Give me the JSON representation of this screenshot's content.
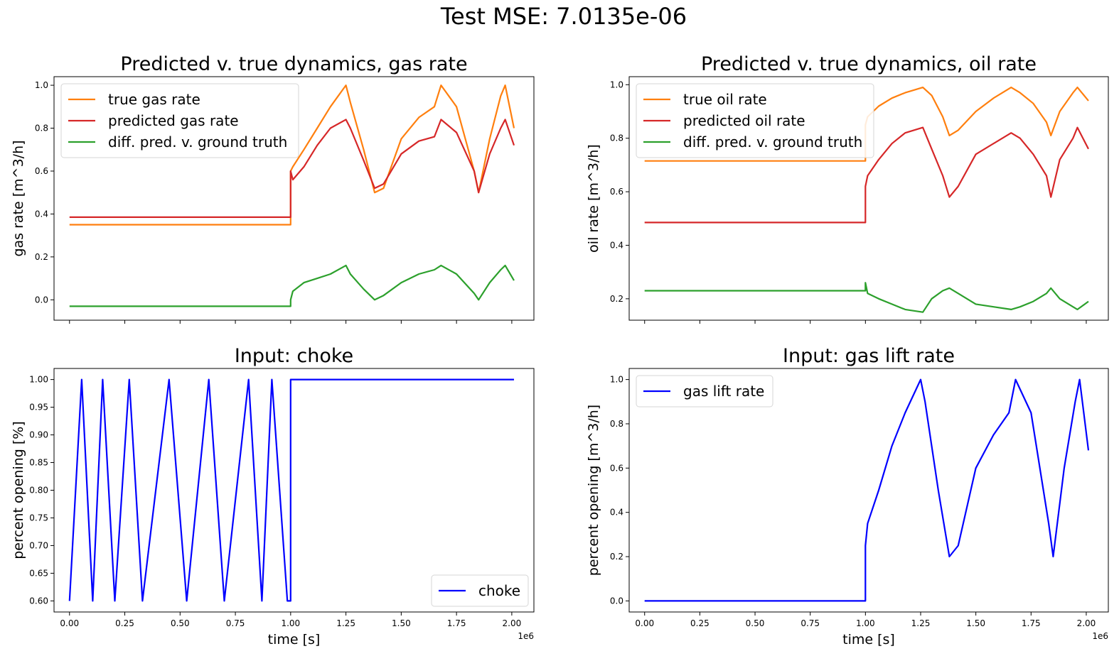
{
  "figure": {
    "suptitle": "Test MSE: 7.0135e-06"
  },
  "colors": {
    "true": "#ff7f0e",
    "predicted": "#d62728",
    "diff": "#2ca02c",
    "input": "#0000ff"
  },
  "chart_data": [
    {
      "id": "gas",
      "type": "line",
      "title": "Predicted v. true dynamics, gas rate",
      "xlabel": "",
      "ylabel": "gas rate [m^3/h]",
      "xlim": [
        -70000,
        2100000
      ],
      "ylim": [
        -0.095,
        1.04
      ],
      "xticks": [
        0,
        250000,
        500000,
        750000,
        1000000,
        1250000,
        1500000,
        1750000,
        2000000
      ],
      "xtick_labels": [],
      "yticks": [
        0.0,
        0.2,
        0.4,
        0.6,
        0.8,
        1.0
      ],
      "ytick_labels": [
        "0.0",
        "0.2",
        "0.4",
        "0.6",
        "0.8",
        "1.0"
      ],
      "offset_text": "",
      "legend": {
        "loc": "upper-left",
        "entries": [
          "true gas rate",
          "predicted gas rate",
          "diff. pred. v. ground truth"
        ]
      },
      "series": [
        {
          "name": "true gas rate",
          "color_key": "true",
          "x": [
            0,
            1000000,
            1000000,
            1010000,
            1060000,
            1120000,
            1180000,
            1250000,
            1270000,
            1330000,
            1380000,
            1420000,
            1500000,
            1580000,
            1650000,
            1680000,
            1750000,
            1830000,
            1850000,
            1900000,
            1950000,
            1970000,
            2010000
          ],
          "y": [
            0.35,
            0.35,
            0.6,
            0.62,
            0.7,
            0.8,
            0.9,
            1.0,
            0.92,
            0.7,
            0.5,
            0.52,
            0.75,
            0.85,
            0.9,
            1.0,
            0.9,
            0.6,
            0.5,
            0.75,
            0.95,
            1.0,
            0.8
          ]
        },
        {
          "name": "predicted gas rate",
          "color_key": "predicted",
          "x": [
            0,
            1000000,
            1000000,
            1010000,
            1060000,
            1120000,
            1180000,
            1250000,
            1270000,
            1330000,
            1380000,
            1420000,
            1500000,
            1580000,
            1650000,
            1680000,
            1750000,
            1830000,
            1850000,
            1900000,
            1950000,
            1970000,
            2010000
          ],
          "y": [
            0.385,
            0.385,
            0.6,
            0.56,
            0.62,
            0.72,
            0.8,
            0.84,
            0.8,
            0.65,
            0.52,
            0.54,
            0.68,
            0.74,
            0.76,
            0.84,
            0.78,
            0.6,
            0.5,
            0.68,
            0.8,
            0.84,
            0.72
          ]
        },
        {
          "name": "diff. pred. v. ground truth",
          "color_key": "diff",
          "x": [
            0,
            1000000,
            1000000,
            1010000,
            1060000,
            1120000,
            1180000,
            1250000,
            1270000,
            1330000,
            1380000,
            1420000,
            1500000,
            1580000,
            1650000,
            1680000,
            1750000,
            1830000,
            1850000,
            1900000,
            1950000,
            1970000,
            2010000
          ],
          "y": [
            -0.03,
            -0.03,
            0.0,
            0.04,
            0.08,
            0.1,
            0.12,
            0.16,
            0.12,
            0.05,
            0.0,
            0.02,
            0.08,
            0.12,
            0.14,
            0.16,
            0.12,
            0.03,
            0.0,
            0.08,
            0.14,
            0.16,
            0.09
          ]
        }
      ]
    },
    {
      "id": "oil",
      "type": "line",
      "title": "Predicted v. true dynamics, oil rate",
      "xlabel": "",
      "ylabel": "oil rate [m^3/h]",
      "xlim": [
        -70000,
        2100000
      ],
      "ylim": [
        0.12,
        1.03
      ],
      "xticks": [
        0,
        250000,
        500000,
        750000,
        1000000,
        1250000,
        1500000,
        1750000,
        2000000
      ],
      "xtick_labels": [],
      "yticks": [
        0.2,
        0.4,
        0.6,
        0.8,
        1.0
      ],
      "ytick_labels": [
        "0.2",
        "0.4",
        "0.6",
        "0.8",
        "1.0"
      ],
      "offset_text": "",
      "legend": {
        "loc": "upper-left",
        "entries": [
          "true oil rate",
          "predicted oil rate",
          "diff. pred. v. ground truth"
        ]
      },
      "series": [
        {
          "name": "true oil rate",
          "color_key": "true",
          "x": [
            0,
            1000000,
            1000000,
            1010000,
            1060000,
            1120000,
            1180000,
            1260000,
            1300000,
            1350000,
            1380000,
            1420000,
            1500000,
            1580000,
            1660000,
            1700000,
            1760000,
            1820000,
            1840000,
            1880000,
            1940000,
            1960000,
            2010000
          ],
          "y": [
            0.715,
            0.715,
            0.85,
            0.88,
            0.92,
            0.95,
            0.97,
            0.99,
            0.96,
            0.88,
            0.81,
            0.83,
            0.9,
            0.95,
            0.99,
            0.97,
            0.93,
            0.86,
            0.81,
            0.9,
            0.97,
            0.99,
            0.94
          ]
        },
        {
          "name": "predicted oil rate",
          "color_key": "predicted",
          "x": [
            0,
            1000000,
            1000000,
            1010000,
            1060000,
            1120000,
            1180000,
            1260000,
            1300000,
            1350000,
            1380000,
            1420000,
            1500000,
            1580000,
            1660000,
            1700000,
            1760000,
            1820000,
            1840000,
            1880000,
            1940000,
            1960000,
            2010000
          ],
          "y": [
            0.485,
            0.485,
            0.62,
            0.66,
            0.72,
            0.78,
            0.82,
            0.84,
            0.76,
            0.66,
            0.58,
            0.62,
            0.74,
            0.78,
            0.82,
            0.8,
            0.74,
            0.66,
            0.58,
            0.72,
            0.8,
            0.84,
            0.76
          ]
        },
        {
          "name": "diff. pred. v. ground truth",
          "color_key": "diff",
          "x": [
            0,
            1000000,
            1000000,
            1010000,
            1060000,
            1120000,
            1180000,
            1260000,
            1300000,
            1350000,
            1380000,
            1420000,
            1500000,
            1580000,
            1660000,
            1700000,
            1760000,
            1820000,
            1840000,
            1880000,
            1940000,
            1960000,
            2010000
          ],
          "y": [
            0.23,
            0.23,
            0.26,
            0.22,
            0.2,
            0.18,
            0.16,
            0.15,
            0.2,
            0.23,
            0.24,
            0.22,
            0.18,
            0.17,
            0.16,
            0.17,
            0.19,
            0.22,
            0.24,
            0.2,
            0.17,
            0.16,
            0.19
          ]
        }
      ]
    },
    {
      "id": "choke",
      "type": "line",
      "title": "Input: choke",
      "xlabel": "time [s]",
      "ylabel": "percent opening [%]",
      "xlim": [
        -70000,
        2100000
      ],
      "ylim": [
        0.58,
        1.02
      ],
      "xticks": [
        0,
        250000,
        500000,
        750000,
        1000000,
        1250000,
        1500000,
        1750000,
        2000000
      ],
      "xtick_labels": [
        "0.00",
        "0.25",
        "0.50",
        "0.75",
        "1.00",
        "1.25",
        "1.50",
        "1.75",
        "2.00"
      ],
      "yticks": [
        0.6,
        0.65,
        0.7,
        0.75,
        0.8,
        0.85,
        0.9,
        0.95,
        1.0
      ],
      "ytick_labels": [
        "0.60",
        "0.65",
        "0.70",
        "0.75",
        "0.80",
        "0.85",
        "0.90",
        "0.95",
        "1.00"
      ],
      "offset_text": "1e6",
      "legend": {
        "loc": "lower-right",
        "entries": [
          "choke"
        ]
      },
      "series": [
        {
          "name": "choke",
          "color_key": "input",
          "x": [
            0,
            55000,
            105000,
            150000,
            205000,
            270000,
            330000,
            450000,
            530000,
            630000,
            700000,
            810000,
            870000,
            915000,
            985000,
            1000000,
            1000000,
            2010000
          ],
          "y": [
            0.6,
            1.0,
            0.6,
            1.0,
            0.6,
            1.0,
            0.6,
            1.0,
            0.6,
            1.0,
            0.6,
            1.0,
            0.6,
            1.0,
            0.6,
            0.6,
            1.0,
            1.0
          ]
        }
      ]
    },
    {
      "id": "gaslift",
      "type": "line",
      "title": "Input: gas lift rate",
      "xlabel": "time [s]",
      "ylabel": "percent opening [m^3/h]",
      "xlim": [
        -70000,
        2100000
      ],
      "ylim": [
        -0.05,
        1.05
      ],
      "xticks": [
        0,
        250000,
        500000,
        750000,
        1000000,
        1250000,
        1500000,
        1750000,
        2000000
      ],
      "xtick_labels": [
        "0.00",
        "0.25",
        "0.50",
        "0.75",
        "1.00",
        "1.25",
        "1.50",
        "1.75",
        "2.00"
      ],
      "yticks": [
        0.0,
        0.2,
        0.4,
        0.6,
        0.8,
        1.0
      ],
      "ytick_labels": [
        "0.0",
        "0.2",
        "0.4",
        "0.6",
        "0.8",
        "1.0"
      ],
      "offset_text": "1e6",
      "legend": {
        "loc": "upper-left",
        "entries": [
          "gas lift rate"
        ]
      },
      "series": [
        {
          "name": "gas lift rate",
          "color_key": "input",
          "x": [
            0,
            1000000,
            1000000,
            1010000,
            1060000,
            1120000,
            1180000,
            1250000,
            1270000,
            1330000,
            1380000,
            1420000,
            1500000,
            1580000,
            1650000,
            1680000,
            1750000,
            1830000,
            1850000,
            1900000,
            1950000,
            1970000,
            2010000
          ],
          "y": [
            0.0,
            0.0,
            0.25,
            0.35,
            0.5,
            0.7,
            0.85,
            1.0,
            0.9,
            0.5,
            0.2,
            0.25,
            0.6,
            0.75,
            0.85,
            1.0,
            0.85,
            0.35,
            0.2,
            0.6,
            0.9,
            1.0,
            0.68
          ]
        }
      ]
    }
  ]
}
